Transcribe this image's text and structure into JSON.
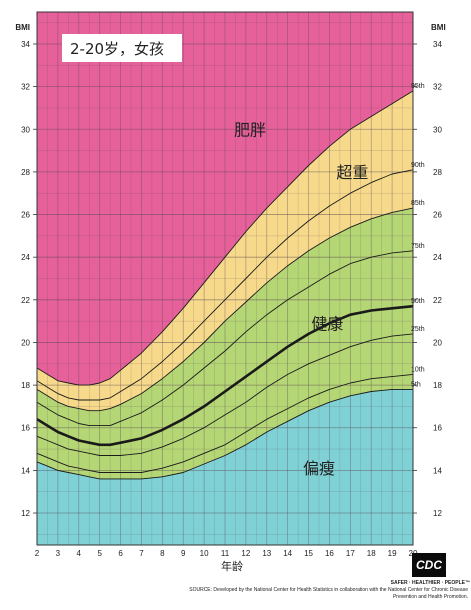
{
  "title": "2-20岁，女孩",
  "source_text": "SOURCE: Developed by the National Center for Health Statistics in collaboration with the National Center for Chronic Disease Prevention and Health Promotion.",
  "logo": {
    "text": "CDC",
    "tagline": "SAFER · HEALTHIER · PEOPLE™"
  },
  "chart_data": {
    "type": "area",
    "title": "2-20岁，女孩",
    "xlabel": "年龄",
    "ylabel": "BMI",
    "xlim": [
      2,
      20
    ],
    "ylim": [
      10.5,
      35.5
    ],
    "x_ticks": [
      2,
      3,
      4,
      5,
      6,
      7,
      8,
      9,
      10,
      11,
      12,
      13,
      14,
      15,
      16,
      17,
      18,
      19,
      20
    ],
    "y_ticks": [
      12,
      14,
      16,
      18,
      20,
      22,
      24,
      26,
      28,
      30,
      32,
      34
    ],
    "grid": true,
    "x": [
      2,
      2.5,
      3,
      3.5,
      4,
      4.5,
      5,
      5.5,
      6,
      7,
      8,
      9,
      10,
      11,
      12,
      13,
      14,
      15,
      16,
      17,
      18,
      19,
      20
    ],
    "series": [
      {
        "name": "5th",
        "values": [
          14.4,
          14.2,
          14.0,
          13.9,
          13.8,
          13.7,
          13.6,
          13.6,
          13.6,
          13.6,
          13.7,
          13.9,
          14.3,
          14.7,
          15.2,
          15.8,
          16.3,
          16.8,
          17.2,
          17.5,
          17.7,
          17.8,
          17.8
        ]
      },
      {
        "name": "10th",
        "values": [
          14.8,
          14.6,
          14.4,
          14.2,
          14.1,
          14.0,
          13.9,
          13.9,
          13.9,
          13.9,
          14.1,
          14.4,
          14.8,
          15.2,
          15.8,
          16.4,
          16.9,
          17.4,
          17.8,
          18.1,
          18.3,
          18.4,
          18.5
        ]
      },
      {
        "name": "25th",
        "values": [
          15.6,
          15.4,
          15.2,
          15.0,
          14.9,
          14.8,
          14.7,
          14.7,
          14.7,
          14.8,
          15.1,
          15.5,
          16.0,
          16.6,
          17.2,
          17.9,
          18.5,
          19.0,
          19.4,
          19.8,
          20.1,
          20.3,
          20.4
        ]
      },
      {
        "name": "50th",
        "values": [
          16.4,
          16.1,
          15.8,
          15.6,
          15.4,
          15.3,
          15.2,
          15.2,
          15.3,
          15.5,
          15.9,
          16.4,
          17.0,
          17.7,
          18.4,
          19.1,
          19.8,
          20.4,
          20.9,
          21.3,
          21.5,
          21.6,
          21.7
        ]
      },
      {
        "name": "75th",
        "values": [
          17.2,
          16.9,
          16.6,
          16.4,
          16.2,
          16.1,
          16.1,
          16.1,
          16.3,
          16.7,
          17.3,
          18.0,
          18.8,
          19.6,
          20.5,
          21.3,
          22.0,
          22.6,
          23.2,
          23.7,
          24.0,
          24.2,
          24.3
        ]
      },
      {
        "name": "85th",
        "values": [
          17.8,
          17.5,
          17.2,
          17.0,
          16.9,
          16.8,
          16.8,
          16.9,
          17.1,
          17.6,
          18.3,
          19.1,
          20.0,
          21.0,
          21.9,
          22.8,
          23.6,
          24.3,
          24.9,
          25.4,
          25.8,
          26.1,
          26.3
        ]
      },
      {
        "name": "90th",
        "values": [
          18.2,
          17.9,
          17.6,
          17.4,
          17.3,
          17.3,
          17.3,
          17.4,
          17.7,
          18.3,
          19.1,
          20.0,
          21.0,
          22.0,
          23.0,
          24.0,
          24.9,
          25.7,
          26.4,
          27.0,
          27.5,
          27.9,
          28.1
        ]
      },
      {
        "name": "95th",
        "values": [
          18.8,
          18.5,
          18.2,
          18.1,
          18.0,
          18.0,
          18.1,
          18.3,
          18.7,
          19.5,
          20.5,
          21.6,
          22.8,
          24.0,
          25.2,
          26.3,
          27.3,
          28.3,
          29.2,
          30.0,
          30.6,
          31.2,
          31.8
        ]
      }
    ],
    "zones": [
      {
        "label": "肥胖",
        "color": "#e6609a",
        "label_x": 12.2,
        "label_y": 30
      },
      {
        "label": "超重",
        "color": "#f7d98b",
        "label_x": 17.1,
        "label_y": 28
      },
      {
        "label": "健康",
        "color": "#b5d675",
        "label_x": 15.9,
        "label_y": 20.9
      },
      {
        "label": "偏瘦",
        "color": "#7fd1d6",
        "label_x": 15.5,
        "label_y": 14.1
      }
    ]
  }
}
